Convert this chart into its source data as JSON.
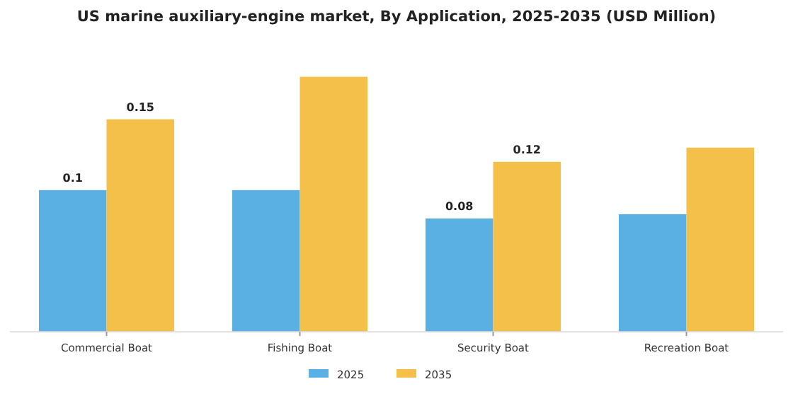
{
  "chart_data": {
    "type": "bar",
    "title": "US marine auxiliary-engine market, By Application, 2025-2035 (USD Million)",
    "categories": [
      "Commercial Boat",
      "Fishing Boat",
      "Security Boat",
      "Recreation Boat"
    ],
    "series": [
      {
        "name": "2025",
        "color": "#5ab0e2",
        "values": [
          0.1,
          0.1,
          0.08,
          0.083
        ],
        "value_labels": [
          "0.1",
          null,
          "0.08",
          null
        ]
      },
      {
        "name": "2035",
        "color": "#f5c04a",
        "values": [
          0.15,
          0.18,
          0.12,
          0.13
        ],
        "value_labels": [
          "0.15",
          null,
          "0.12",
          null
        ]
      }
    ],
    "legend": "bottom"
  }
}
